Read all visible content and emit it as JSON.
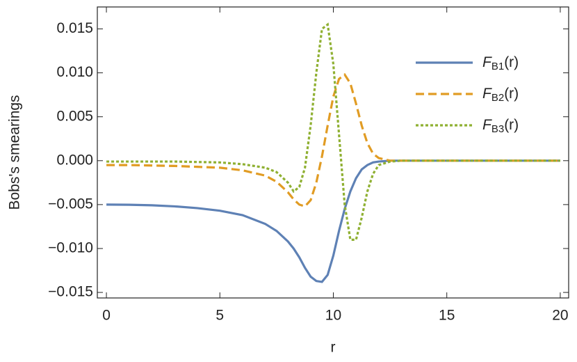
{
  "chart_data": {
    "type": "line",
    "xlabel": "r",
    "ylabel": "Bobs's smearings",
    "x": [
      0,
      1,
      2,
      3,
      4,
      5,
      6,
      7,
      7.5,
      8,
      8.25,
      8.5,
      8.75,
      9,
      9.25,
      9.5,
      9.75,
      10,
      10.25,
      10.5,
      10.75,
      11,
      11.25,
      11.5,
      11.75,
      12,
      12.5,
      13,
      14,
      15,
      16,
      17,
      18,
      19,
      20
    ],
    "series": [
      {
        "name": "FB1(r)",
        "color": "#5e81b5",
        "style": "solid",
        "values": [
          -0.005,
          -0.00502,
          -0.00508,
          -0.0052,
          -0.0054,
          -0.0057,
          -0.0062,
          -0.0072,
          -0.008,
          -0.0092,
          -0.01,
          -0.011,
          -0.0122,
          -0.0132,
          -0.0137,
          -0.0138,
          -0.013,
          -0.0108,
          -0.008,
          -0.0055,
          -0.0035,
          -0.002,
          -0.001,
          -0.0005,
          -0.0002,
          -0.0001,
          0,
          0,
          0,
          0,
          0,
          0,
          0,
          0,
          0
        ]
      },
      {
        "name": "FB2(r)",
        "color": "#e19c24",
        "style": "dashed",
        "values": [
          -0.0005,
          -0.0005,
          -0.00055,
          -0.0006,
          -0.0007,
          -0.0008,
          -0.0011,
          -0.0017,
          -0.0024,
          -0.0036,
          -0.0044,
          -0.005,
          -0.0052,
          -0.0045,
          -0.0025,
          0.0005,
          0.004,
          0.0073,
          0.0093,
          0.0098,
          0.0088,
          0.0065,
          0.004,
          0.002,
          0.0008,
          0.0003,
          0,
          0,
          0,
          0,
          0,
          0,
          0,
          0,
          0
        ]
      },
      {
        "name": "FB3(r)",
        "color": "#8fb032",
        "style": "dotted",
        "values": [
          -0.0001,
          -0.0001,
          -0.0001,
          -0.0001,
          -0.00015,
          -0.0002,
          -0.0004,
          -0.0008,
          -0.0013,
          -0.0025,
          -0.0035,
          -0.003,
          -0.0008,
          0.004,
          0.01,
          0.015,
          0.0155,
          0.011,
          0.003,
          -0.005,
          -0.009,
          -0.009,
          -0.0065,
          -0.0035,
          -0.0015,
          -0.0005,
          -0.0001,
          0,
          0,
          0,
          0,
          0,
          0,
          0,
          0
        ]
      }
    ],
    "xlim": [
      -0.4,
      20.37
    ],
    "ylim": [
      -0.01563,
      0.0175
    ],
    "xticks": [
      0,
      5,
      10,
      15,
      20
    ],
    "yticks": [
      {
        "value": -0.015,
        "label": "−0.015"
      },
      {
        "value": -0.01,
        "label": "−0.010"
      },
      {
        "value": -0.005,
        "label": "−0.005"
      },
      {
        "value": 0,
        "label": "0.000"
      },
      {
        "value": 0.005,
        "label": "0.005"
      },
      {
        "value": 0.01,
        "label": "0.010"
      },
      {
        "value": 0.015,
        "label": "0.015"
      }
    ],
    "legend": "upper right",
    "grid": false
  }
}
